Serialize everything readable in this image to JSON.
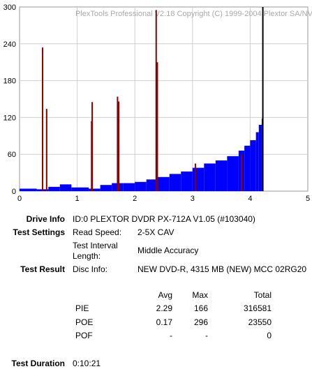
{
  "chart_data": {
    "type": "bar",
    "title": "PlexTools Professional V2.18 Copyright (C) 1999-2004 Plextor SA/NV",
    "xlabel": "",
    "ylabel": "",
    "xlim": [
      0,
      5
    ],
    "ylim": [
      0,
      300
    ],
    "x_ticks": [
      "0",
      "1",
      "2",
      "3",
      "4",
      "5"
    ],
    "y_ticks": [
      "0",
      "60",
      "120",
      "180",
      "240",
      "300"
    ],
    "grid": true,
    "series": [
      {
        "color": "#0000ff",
        "x": [
          0.0,
          0.3,
          0.5,
          0.7,
          0.9,
          1.2,
          1.4,
          1.6,
          1.8,
          2.0,
          2.2,
          2.4,
          2.6,
          2.8,
          3.0,
          3.2,
          3.4,
          3.6,
          3.8,
          3.9,
          4.0,
          4.1,
          4.15,
          4.2
        ],
        "values": [
          4,
          3,
          7,
          11,
          6,
          4,
          10,
          13,
          13,
          15,
          19,
          23,
          28,
          32,
          38,
          45,
          50,
          57,
          66,
          74,
          83,
          96,
          108,
          118
        ]
      },
      {
        "color": "#8b0000",
        "x": [
          0.4,
          0.47,
          1.25,
          1.26,
          1.7,
          1.72,
          2.37,
          2.39,
          3.05,
          3.85
        ],
        "values": [
          234,
          134,
          114,
          145,
          154,
          146,
          295,
          210,
          45,
          60
        ]
      },
      {
        "color": "#000000",
        "x": [
          4.22
        ],
        "values": [
          300
        ]
      }
    ]
  },
  "info": {
    "drive_info_label": "Drive Info",
    "drive_info_value": "ID:0 PLEXTOR DVDR PX-712A V1.05 (#103040)",
    "test_settings_label": "Test Settings",
    "read_speed_label": "Read Speed:",
    "read_speed_value": "2-5X CAV",
    "interval_label_1": "Test Interval",
    "interval_label_2": "Length:",
    "interval_value": "Middle Accuracy",
    "test_result_label": "Test Result",
    "disc_info_label": "Disc Info:",
    "disc_info_value": "NEW DVD-R, 4315 MB (NEW) MCC 02RG20",
    "test_duration_label": "Test Duration",
    "test_duration_value": "0:10:21"
  },
  "results": {
    "headers": [
      "Avg",
      "Max",
      "Total"
    ],
    "rows": [
      {
        "name": "PIE",
        "avg": "2.29",
        "max": "166",
        "total": "316581"
      },
      {
        "name": "POE",
        "avg": "0.17",
        "max": "296",
        "total": "23550"
      },
      {
        "name": "POF",
        "avg": "-",
        "max": "-",
        "total": "0"
      }
    ]
  }
}
